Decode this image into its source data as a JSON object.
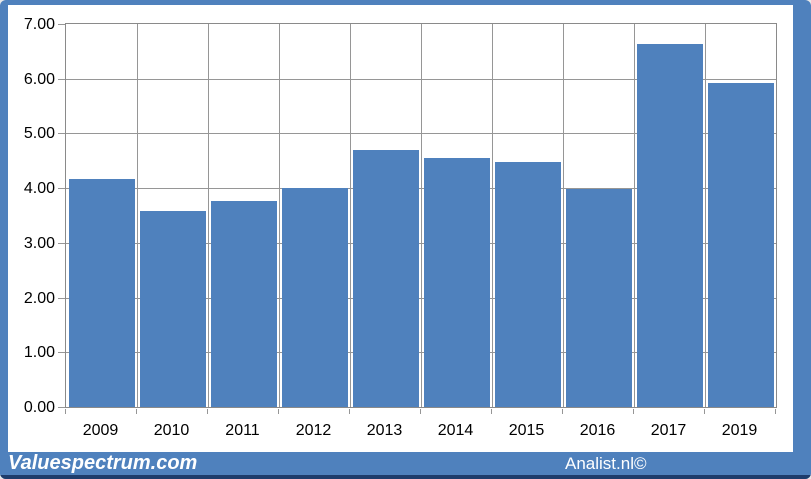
{
  "chart_data": {
    "type": "bar",
    "title": "",
    "xlabel": "",
    "ylabel": "",
    "categories": [
      "2009",
      "2010",
      "2011",
      "2012",
      "2013",
      "2014",
      "2015",
      "2016",
      "2017",
      "2019"
    ],
    "values": [
      4.16,
      3.58,
      3.77,
      4.0,
      4.69,
      4.56,
      4.47,
      3.98,
      6.63,
      5.92
    ],
    "ylim": [
      0,
      7
    ],
    "ytick_step": 1,
    "ytick_labels": [
      "0.00",
      "1.00",
      "2.00",
      "3.00",
      "4.00",
      "5.00",
      "6.00",
      "7.00"
    ],
    "grid": true,
    "legend_position": "none",
    "bar_color": "#4f81bd"
  },
  "footer": {
    "left_brand": "Valuespectrum.com",
    "right_brand": "Analist.nl©"
  },
  "colors": {
    "bar": "#4f81bd",
    "frame": "#4f81bd",
    "footer_band": "#4f81bd",
    "bottom_accent": "#1e3c6b",
    "gridline": "#969696",
    "plot_border": "#8a8a8a",
    "axis_text": "#000000",
    "footer_text": "#ffffff"
  }
}
